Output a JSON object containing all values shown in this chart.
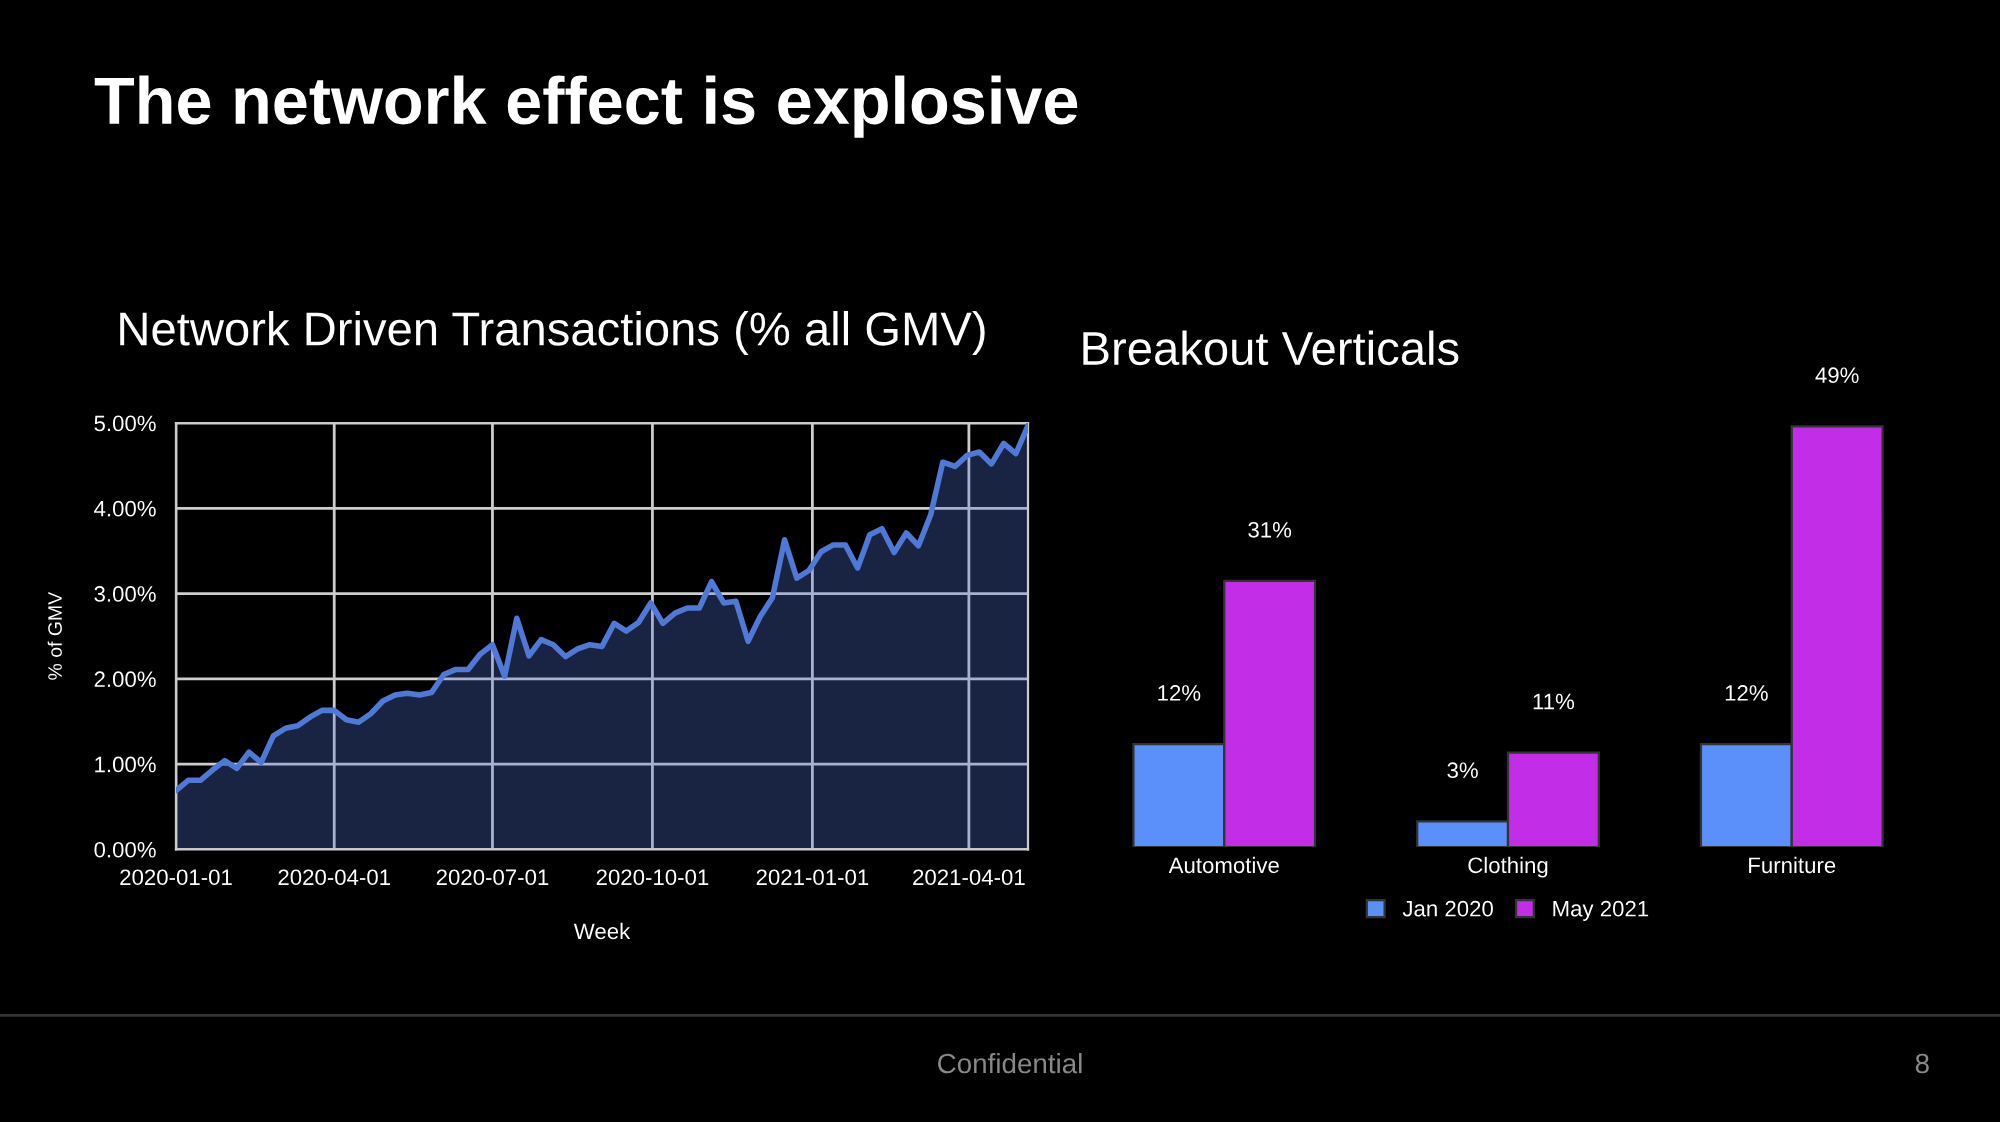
{
  "chart_data": [
    {
      "type": "area",
      "title": "Network Driven Transactions (% all GMV)",
      "xlabel": "Week",
      "ylabel": "% of GMV",
      "annotations": [
        "The network effect is explosive",
        "Confidential",
        "8"
      ],
      "x": [
        "2020-01-01",
        "2020-01-08",
        "2020-01-15",
        "2020-01-22",
        "2020-01-29",
        "2020-02-05",
        "2020-02-12",
        "2020-02-19",
        "2020-02-26",
        "2020-03-04",
        "2020-03-11",
        "2020-03-18",
        "2020-03-25",
        "2020-04-01",
        "2020-04-08",
        "2020-04-15",
        "2020-04-22",
        "2020-04-29",
        "2020-05-06",
        "2020-05-13",
        "2020-05-20",
        "2020-05-27",
        "2020-06-03",
        "2020-06-10",
        "2020-06-17",
        "2020-06-24",
        "2020-07-01",
        "2020-07-08",
        "2020-07-15",
        "2020-07-22",
        "2020-07-29",
        "2020-08-05",
        "2020-08-12",
        "2020-08-19",
        "2020-08-26",
        "2020-09-02",
        "2020-09-09",
        "2020-09-16",
        "2020-09-23",
        "2020-09-30",
        "2020-10-07",
        "2020-10-14",
        "2020-10-21",
        "2020-10-28",
        "2020-11-04",
        "2020-11-11",
        "2020-11-18",
        "2020-11-25",
        "2020-12-02",
        "2020-12-09",
        "2020-12-16",
        "2020-12-23",
        "2020-12-30",
        "2021-01-06",
        "2021-01-13",
        "2021-01-20",
        "2021-01-27",
        "2021-02-03",
        "2021-02-10",
        "2021-02-17",
        "2021-02-24",
        "2021-03-03",
        "2021-03-10",
        "2021-03-17",
        "2021-03-24",
        "2021-03-31",
        "2021-04-07",
        "2021-04-14",
        "2021-04-21",
        "2021-04-28",
        "2021-05-05"
      ],
      "series": [
        {
          "color": "#5078d6",
          "values": [
            0.69,
            0.81,
            0.81,
            0.93,
            1.04,
            0.95,
            1.14,
            1.02,
            1.33,
            1.42,
            1.45,
            1.55,
            1.63,
            1.63,
            1.52,
            1.49,
            1.59,
            1.74,
            1.81,
            1.83,
            1.81,
            1.84,
            2.05,
            2.11,
            2.11,
            2.29,
            2.4,
            2.03,
            2.71,
            2.27,
            2.46,
            2.4,
            2.26,
            2.35,
            2.4,
            2.38,
            2.65,
            2.56,
            2.66,
            2.89,
            2.65,
            2.77,
            2.83,
            2.83,
            3.14,
            2.89,
            2.91,
            2.44,
            2.73,
            2.95,
            3.63,
            3.18,
            3.27,
            3.49,
            3.57,
            3.57,
            3.3,
            3.69,
            3.76,
            3.48,
            3.71,
            3.56,
            3.92,
            4.54,
            4.49,
            4.62,
            4.66,
            4.52,
            4.76,
            4.64,
            4.97
          ]
        }
      ],
      "xlim": [
        "2020-01-01",
        "2021-05-05"
      ],
      "xticks": [
        {
          "value": "2020-01-01",
          "label": "2020-01-01"
        },
        {
          "value": "2020-04-01",
          "label": "2020-04-01"
        },
        {
          "value": "2020-07-01",
          "label": "2020-07-01"
        },
        {
          "value": "2020-10-01",
          "label": "2020-10-01"
        },
        {
          "value": "2021-01-01",
          "label": "2021-01-01"
        },
        {
          "value": "2021-04-01",
          "label": "2021-04-01"
        }
      ],
      "ylim": [
        0,
        5
      ],
      "yticks": [
        {
          "value": 0,
          "label": "0.00%"
        },
        {
          "value": 1,
          "label": "1.00%"
        },
        {
          "value": 2,
          "label": "2.00%"
        },
        {
          "value": 3,
          "label": "3.00%"
        },
        {
          "value": 4,
          "label": "4.00%"
        },
        {
          "value": 5,
          "label": "5.00%"
        }
      ],
      "grid": true
    },
    {
      "type": "bar",
      "title": "Breakout Verticals",
      "categories": [
        "Automotive",
        "Clothing",
        "Furniture"
      ],
      "series": [
        {
          "name": "Jan 2020",
          "color": "#5b8ff9",
          "values": [
            12,
            3,
            12
          ],
          "value_labels": [
            "12%",
            "3%",
            "12%"
          ]
        },
        {
          "name": "May 2021",
          "color": "#c22ee8",
          "values": [
            31,
            11,
            49
          ],
          "value_labels": [
            "31%",
            "11%",
            "49%"
          ]
        }
      ],
      "legend": "bottom"
    }
  ]
}
